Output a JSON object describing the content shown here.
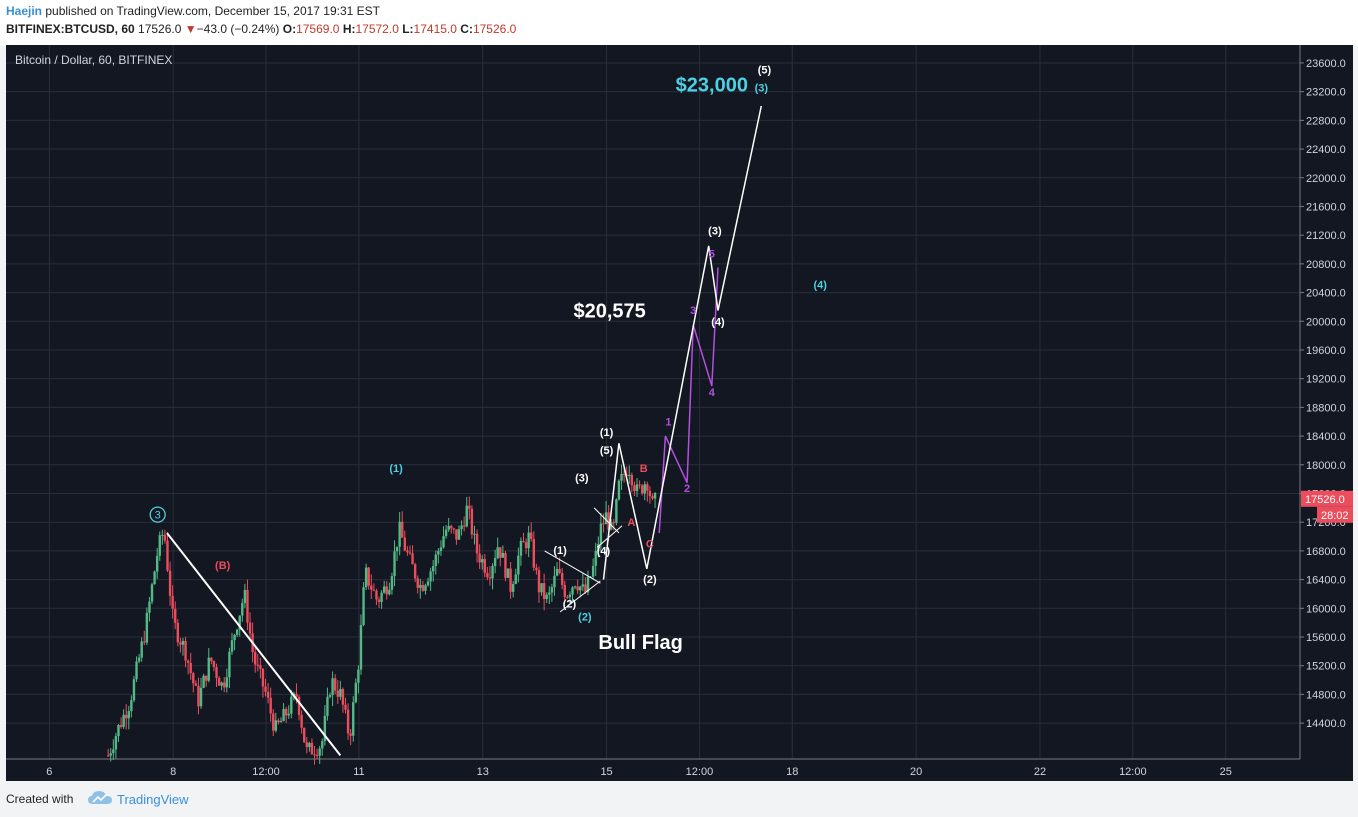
{
  "header": {
    "author": "Haejin",
    "published": "published on TradingView.com, December 15, 2017 19:31 EST",
    "symbol": "BITFINEX:BTCUSD, 60",
    "last": "17526.0",
    "change_arrow": "▼",
    "change": "−43.0 (−0.24%)",
    "o_label": "O:",
    "o_value": "17569.0",
    "h_label": "H:",
    "h_value": "17572.0",
    "l_label": "L:",
    "l_value": "17415.0",
    "c_label": "C:",
    "c_value": "17526.0"
  },
  "footer": {
    "created": "Created with",
    "brand": "TradingView"
  },
  "colors": {
    "background": "#131722",
    "grid": "#2a2e39",
    "up": "#53b987",
    "down": "#eb4d5c",
    "cyan": "#4dd0e1",
    "purple": "#b44fe0",
    "white": "#ffffff",
    "red_label": "#eb4d5c",
    "price_tag": "#eb4d5c"
  },
  "chart_data": {
    "type": "candlestick",
    "title": "Bitcoin / Dollar, 60, BITFINEX",
    "y_ticks": [
      14400,
      14800,
      15200,
      15600,
      16000,
      16400,
      16800,
      17200,
      17600,
      18000,
      18400,
      18800,
      19200,
      19600,
      20000,
      20400,
      20800,
      21200,
      21600,
      22000,
      22400,
      22800,
      23200,
      23600
    ],
    "ylim": [
      13900,
      23850
    ],
    "x_ticks": [
      {
        "label": "6",
        "day": 6.0
      },
      {
        "label": "8",
        "day": 8.0
      },
      {
        "label": "12:00",
        "day": 9.5
      },
      {
        "label": "11",
        "day": 11.0
      },
      {
        "label": "13",
        "day": 13.0
      },
      {
        "label": "15",
        "day": 15.0
      },
      {
        "label": "12:00",
        "day": 16.5
      },
      {
        "label": "18",
        "day": 18.0
      },
      {
        "label": "20",
        "day": 20.0
      },
      {
        "label": "22",
        "day": 22.0
      },
      {
        "label": "12:00",
        "day": 23.5
      },
      {
        "label": "25",
        "day": 25.0
      }
    ],
    "xlim": [
      5.3,
      26.2
    ],
    "last_price": "17526.0",
    "countdown": "28:02",
    "price_path": [
      [
        6.95,
        13950
      ],
      [
        7.1,
        14300
      ],
      [
        7.3,
        14700
      ],
      [
        7.55,
        15700
      ],
      [
        7.75,
        16800
      ],
      [
        7.85,
        17100
      ],
      [
        8.0,
        15800
      ],
      [
        8.2,
        15400
      ],
      [
        8.4,
        14700
      ],
      [
        8.6,
        15300
      ],
      [
        8.8,
        14900
      ],
      [
        9.0,
        15700
      ],
      [
        9.15,
        16200
      ],
      [
        9.3,
        15300
      ],
      [
        9.5,
        14800
      ],
      [
        9.65,
        14300
      ],
      [
        9.8,
        14500
      ],
      [
        10.0,
        14800
      ],
      [
        10.15,
        14000
      ],
      [
        10.4,
        14100
      ],
      [
        10.55,
        15000
      ],
      [
        10.7,
        14800
      ],
      [
        10.85,
        14200
      ],
      [
        11.0,
        15300
      ],
      [
        11.1,
        16500
      ],
      [
        11.3,
        16100
      ],
      [
        11.5,
        16400
      ],
      [
        11.65,
        17100
      ],
      [
        11.8,
        16700
      ],
      [
        12.0,
        16300
      ],
      [
        12.2,
        16600
      ],
      [
        12.4,
        17100
      ],
      [
        12.6,
        17000
      ],
      [
        12.75,
        17400
      ],
      [
        12.9,
        16800
      ],
      [
        13.1,
        16500
      ],
      [
        13.25,
        16900
      ],
      [
        13.45,
        16300
      ],
      [
        13.6,
        16800
      ],
      [
        13.75,
        17000
      ],
      [
        13.9,
        16300
      ],
      [
        14.05,
        16100
      ],
      [
        14.2,
        16500
      ],
      [
        14.35,
        16200
      ],
      [
        14.5,
        16400
      ],
      [
        14.65,
        16200
      ],
      [
        14.8,
        16600
      ],
      [
        14.9,
        17100
      ],
      [
        15.0,
        17300
      ],
      [
        15.1,
        17000
      ],
      [
        15.2,
        17700
      ],
      [
        15.35,
        18000
      ],
      [
        15.5,
        17600
      ],
      [
        15.65,
        17800
      ],
      [
        15.75,
        17400
      ],
      [
        15.8,
        17526
      ]
    ],
    "trendline": [
      [
        7.9,
        17050
      ],
      [
        10.7,
        13950
      ]
    ],
    "flag_lines": [
      [
        [
          14.0,
          16800
        ],
        [
          14.9,
          16350
        ]
      ],
      [
        [
          14.25,
          15950
        ],
        [
          14.9,
          16380
        ]
      ],
      [
        [
          14.8,
          17400
        ],
        [
          15.2,
          17050
        ]
      ],
      [
        [
          14.85,
          16850
        ],
        [
          15.25,
          17150
        ]
      ]
    ],
    "white_path": [
      [
        14.95,
        16400
      ],
      [
        15.2,
        18300
      ],
      [
        15.65,
        16550
      ],
      [
        16.65,
        21050
      ],
      [
        16.8,
        20150
      ],
      [
        17.5,
        23000
      ]
    ],
    "purple_path": [
      [
        15.85,
        17050
      ],
      [
        15.95,
        18400
      ],
      [
        16.3,
        17750
      ],
      [
        16.4,
        19950
      ],
      [
        16.7,
        19100
      ],
      [
        16.8,
        20750
      ]
    ],
    "annotations": [
      {
        "text": "3",
        "day": 7.75,
        "price": 17250,
        "color": "cyan",
        "circle": true
      },
      {
        "text": "(B)",
        "day": 8.8,
        "price": 16550,
        "color": "red"
      },
      {
        "text": "(1)",
        "day": 11.6,
        "price": 17900,
        "color": "cyan"
      },
      {
        "text": "(1)",
        "day": 14.25,
        "price": 16760,
        "color": "white"
      },
      {
        "text": "(2)",
        "day": 14.4,
        "price": 16010,
        "color": "white"
      },
      {
        "text": "(2)",
        "day": 14.65,
        "price": 15830,
        "color": "cyan"
      },
      {
        "text": "(3)",
        "day": 14.6,
        "price": 17770,
        "color": "white"
      },
      {
        "text": "(4)",
        "day": 14.95,
        "price": 16750,
        "color": "white"
      },
      {
        "text": "(1)",
        "day": 15.0,
        "price": 18400,
        "color": "white"
      },
      {
        "text": "(5)",
        "day": 15.0,
        "price": 18150,
        "color": "white"
      },
      {
        "text": "A",
        "day": 15.4,
        "price": 17150,
        "color": "red"
      },
      {
        "text": "B",
        "day": 15.6,
        "price": 17900,
        "color": "red"
      },
      {
        "text": "C",
        "day": 15.7,
        "price": 16850,
        "color": "red"
      },
      {
        "text": "(2)",
        "day": 15.7,
        "price": 16350,
        "color": "white"
      },
      {
        "text": "1",
        "day": 16.0,
        "price": 18550,
        "color": "purple"
      },
      {
        "text": "2",
        "day": 16.3,
        "price": 17620,
        "color": "purple"
      },
      {
        "text": "3",
        "day": 16.4,
        "price": 20100,
        "color": "purple"
      },
      {
        "text": "4",
        "day": 16.7,
        "price": 18960,
        "color": "purple"
      },
      {
        "text": "5",
        "day": 16.7,
        "price": 20890,
        "color": "purple"
      },
      {
        "text": "(3)",
        "day": 16.75,
        "price": 21210,
        "color": "white"
      },
      {
        "text": "(4)",
        "day": 16.8,
        "price": 19940,
        "color": "white"
      },
      {
        "text": "(4)",
        "day": 18.45,
        "price": 20460,
        "color": "cyan"
      },
      {
        "text": "(5)",
        "day": 17.55,
        "price": 23450,
        "color": "white"
      },
      {
        "text": "(3)",
        "day": 17.5,
        "price": 23200,
        "color": "cyan"
      },
      {
        "text": "$23,000",
        "day": 16.7,
        "price": 23200,
        "color": "cyan",
        "big": true
      },
      {
        "text": "$20,575",
        "day": 15.05,
        "price": 20050,
        "color": "white",
        "big": true
      },
      {
        "text": "Bull Flag",
        "day": 15.55,
        "price": 15430,
        "color": "white",
        "big": true
      }
    ]
  }
}
